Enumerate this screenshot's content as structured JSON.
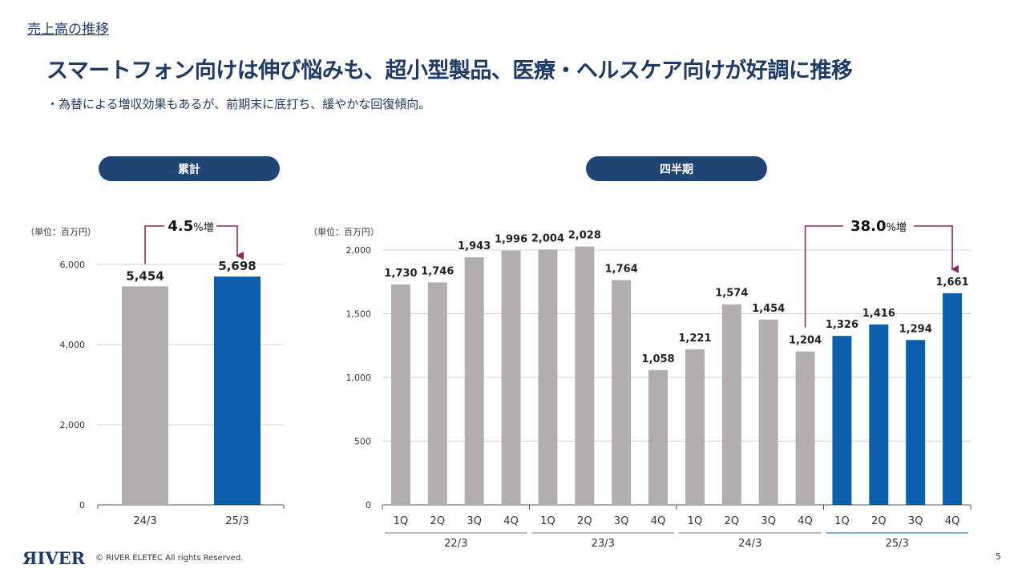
{
  "breadcrumb": "売上高の推移",
  "title": "スマートフォン向けは伸び悩みも、超小型製品、医療・ヘルスケア向けが好調に推移",
  "subtitle": "・為替による増収効果もあるが、前期末に底打ち、緩やかな回復傾向。",
  "panels": {
    "cumulative_label": "累計",
    "quarterly_label": "四半期"
  },
  "footer": {
    "logo": "ЯIVER",
    "copyright": "© RIVER ELETEC All rights Reserved.",
    "page": "5"
  },
  "colors": {
    "navy": "#1e4573",
    "gray_bar": "#b1aead",
    "blue_bar": "#0b5fad",
    "arrow": "#8e2a61"
  },
  "chart_data": [
    {
      "type": "bar",
      "unit_label": "（単位：百万円）",
      "categories": [
        "24/3",
        "25/3"
      ],
      "values": [
        5454,
        5698
      ],
      "value_labels": [
        "5,454",
        "5,698"
      ],
      "ylim": [
        0,
        6000
      ],
      "yticks": [
        0,
        2000,
        4000,
        6000
      ],
      "ytick_labels": [
        "0",
        "2,000",
        "4,000",
        "6,000"
      ],
      "highlight": [
        false,
        true
      ],
      "annotation": {
        "value": "4.5",
        "suffix": "%増",
        "from": "24/3",
        "to": "25/3"
      }
    },
    {
      "type": "bar",
      "unit_label": "（単位：百万円）",
      "categories": [
        "1Q",
        "2Q",
        "3Q",
        "4Q",
        "1Q",
        "2Q",
        "3Q",
        "4Q",
        "1Q",
        "2Q",
        "3Q",
        "4Q",
        "1Q",
        "2Q",
        "3Q",
        "4Q"
      ],
      "groups": [
        "22/3",
        "23/3",
        "24/3",
        "25/3"
      ],
      "values": [
        1730,
        1746,
        1943,
        1996,
        2004,
        2028,
        1764,
        1058,
        1221,
        1574,
        1454,
        1204,
        1326,
        1416,
        1294,
        1661
      ],
      "value_labels": [
        "1,730",
        "1,746",
        "1,943",
        "1,996",
        "2,004",
        "2,028",
        "1,764",
        "1,058",
        "1,221",
        "1,574",
        "1,454",
        "1,204",
        "1,326",
        "1,416",
        "1,294",
        "1,661"
      ],
      "ylim": [
        0,
        2000
      ],
      "yticks": [
        0,
        500,
        1000,
        1500,
        2000
      ],
      "ytick_labels": [
        "0",
        "500",
        "1,000",
        "1,500",
        "2,000"
      ],
      "highlight_group": "25/3",
      "annotation": {
        "value": "38.0",
        "suffix": "%増",
        "from_index": 11,
        "to_index": 15
      }
    }
  ]
}
